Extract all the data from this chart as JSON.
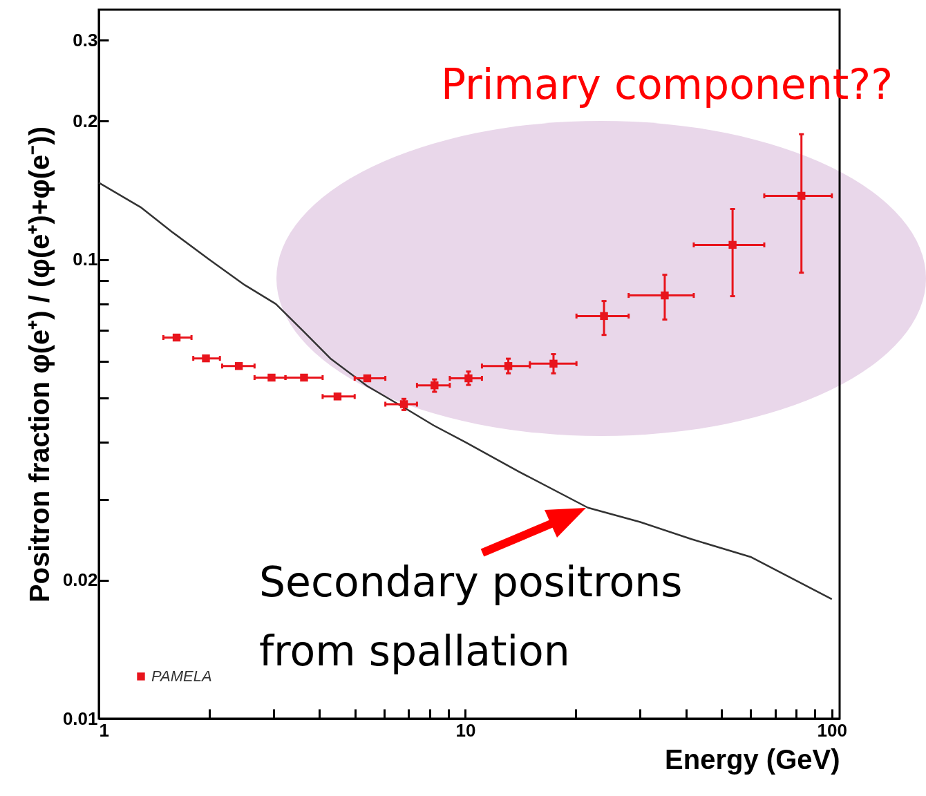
{
  "chart_data": {
    "type": "scatter",
    "xlabel": "Energy (GeV)",
    "ylabel": "Positron fraction    φ(e⁺) / (φ(e⁺)+φ(e⁻))",
    "log": "xy",
    "xlim": [
      1,
      105
    ],
    "ylim": [
      0.01,
      0.35
    ],
    "xticks": [
      1,
      {
        "value": 2,
        "label": null
      },
      {
        "value": 3,
        "label": null
      },
      {
        "value": 4,
        "label": null
      },
      {
        "value": 5,
        "label": null
      },
      {
        "value": 6,
        "label": null
      },
      {
        "value": 7,
        "label": null
      },
      {
        "value": 8,
        "label": null
      },
      {
        "value": 9,
        "label": null
      },
      10,
      {
        "value": 20,
        "label": null
      },
      {
        "value": 30,
        "label": null
      },
      {
        "value": 40,
        "label": null
      },
      {
        "value": 50,
        "label": null
      },
      {
        "value": 60,
        "label": null
      },
      {
        "value": 70,
        "label": null
      },
      {
        "value": 80,
        "label": null
      },
      {
        "value": 90,
        "label": null
      },
      100
    ],
    "yticks": [
      0.01,
      0.02,
      {
        "value": 0.03,
        "label": null
      },
      {
        "value": 0.04,
        "label": null
      },
      {
        "value": 0.05,
        "label": null
      },
      {
        "value": 0.06,
        "label": null
      },
      {
        "value": 0.07,
        "label": null
      },
      {
        "value": 0.08,
        "label": null
      },
      {
        "value": 0.09,
        "label": null
      },
      0.1,
      0.2,
      0.3
    ],
    "grid": false,
    "legend": "bottom left",
    "annotations": [
      "Primary component??",
      "Secondary positrons from spallation"
    ],
    "series": [
      {
        "type": "line",
        "color": "#333333",
        "x": [
          1,
          1.3,
          1.58,
          2,
          2.5,
          3.04,
          3.6,
          4.3,
          5.4,
          6.8,
          8.2,
          10,
          14,
          21.6,
          30,
          41.4,
          60,
          100
        ],
        "values": [
          0.147,
          0.13,
          0.115,
          0.1,
          0.088,
          0.08,
          0.07,
          0.0607,
          0.053,
          0.0476,
          0.0435,
          0.04,
          0.0345,
          0.0288,
          0.0268,
          0.0246,
          0.0225,
          0.0182
        ]
      },
      {
        "name": "PAMELA",
        "marker": "square",
        "color": "#e8141c",
        "x": [
          1.63,
          1.96,
          2.41,
          2.96,
          3.63,
          4.48,
          5.4,
          6.8,
          8.24,
          10.2,
          13.1,
          17.4,
          23.9,
          35.0,
          53.6,
          82.6
        ],
        "values": [
          0.0676,
          0.0609,
          0.0586,
          0.0553,
          0.0553,
          0.0503,
          0.0551,
          0.0484,
          0.0532,
          0.0551,
          0.0586,
          0.0593,
          0.0753,
          0.0835,
          0.1076,
          0.1376
        ],
        "errors": [
          null,
          null,
          null,
          null,
          null,
          null,
          null,
          [
            0.047,
            0.0497
          ],
          [
            0.0515,
            0.0548
          ],
          [
            0.0533,
            0.057
          ],
          [
            0.0565,
            0.0608
          ],
          [
            0.0565,
            0.0622
          ],
          [
            0.0685,
            0.0812
          ],
          [
            0.074,
            0.0926
          ],
          [
            0.0832,
            0.1288
          ],
          [
            0.0936,
            0.1874
          ]
        ],
        "xerrors": [
          [
            1.5,
            1.79
          ],
          [
            1.81,
            2.14
          ],
          [
            2.17,
            2.66
          ],
          [
            2.66,
            3.23
          ],
          [
            3.23,
            4.08
          ],
          [
            4.08,
            4.99
          ],
          [
            4.99,
            6.05
          ],
          [
            6.05,
            7.38
          ],
          [
            7.38,
            9.07
          ],
          [
            9.07,
            11.1
          ],
          [
            11.1,
            15.0
          ],
          [
            15.0,
            20.1
          ],
          [
            20.1,
            27.9
          ],
          [
            27.9,
            42.0
          ],
          [
            42.0,
            65.4
          ],
          [
            65.4,
            100
          ]
        ]
      }
    ]
  }
}
